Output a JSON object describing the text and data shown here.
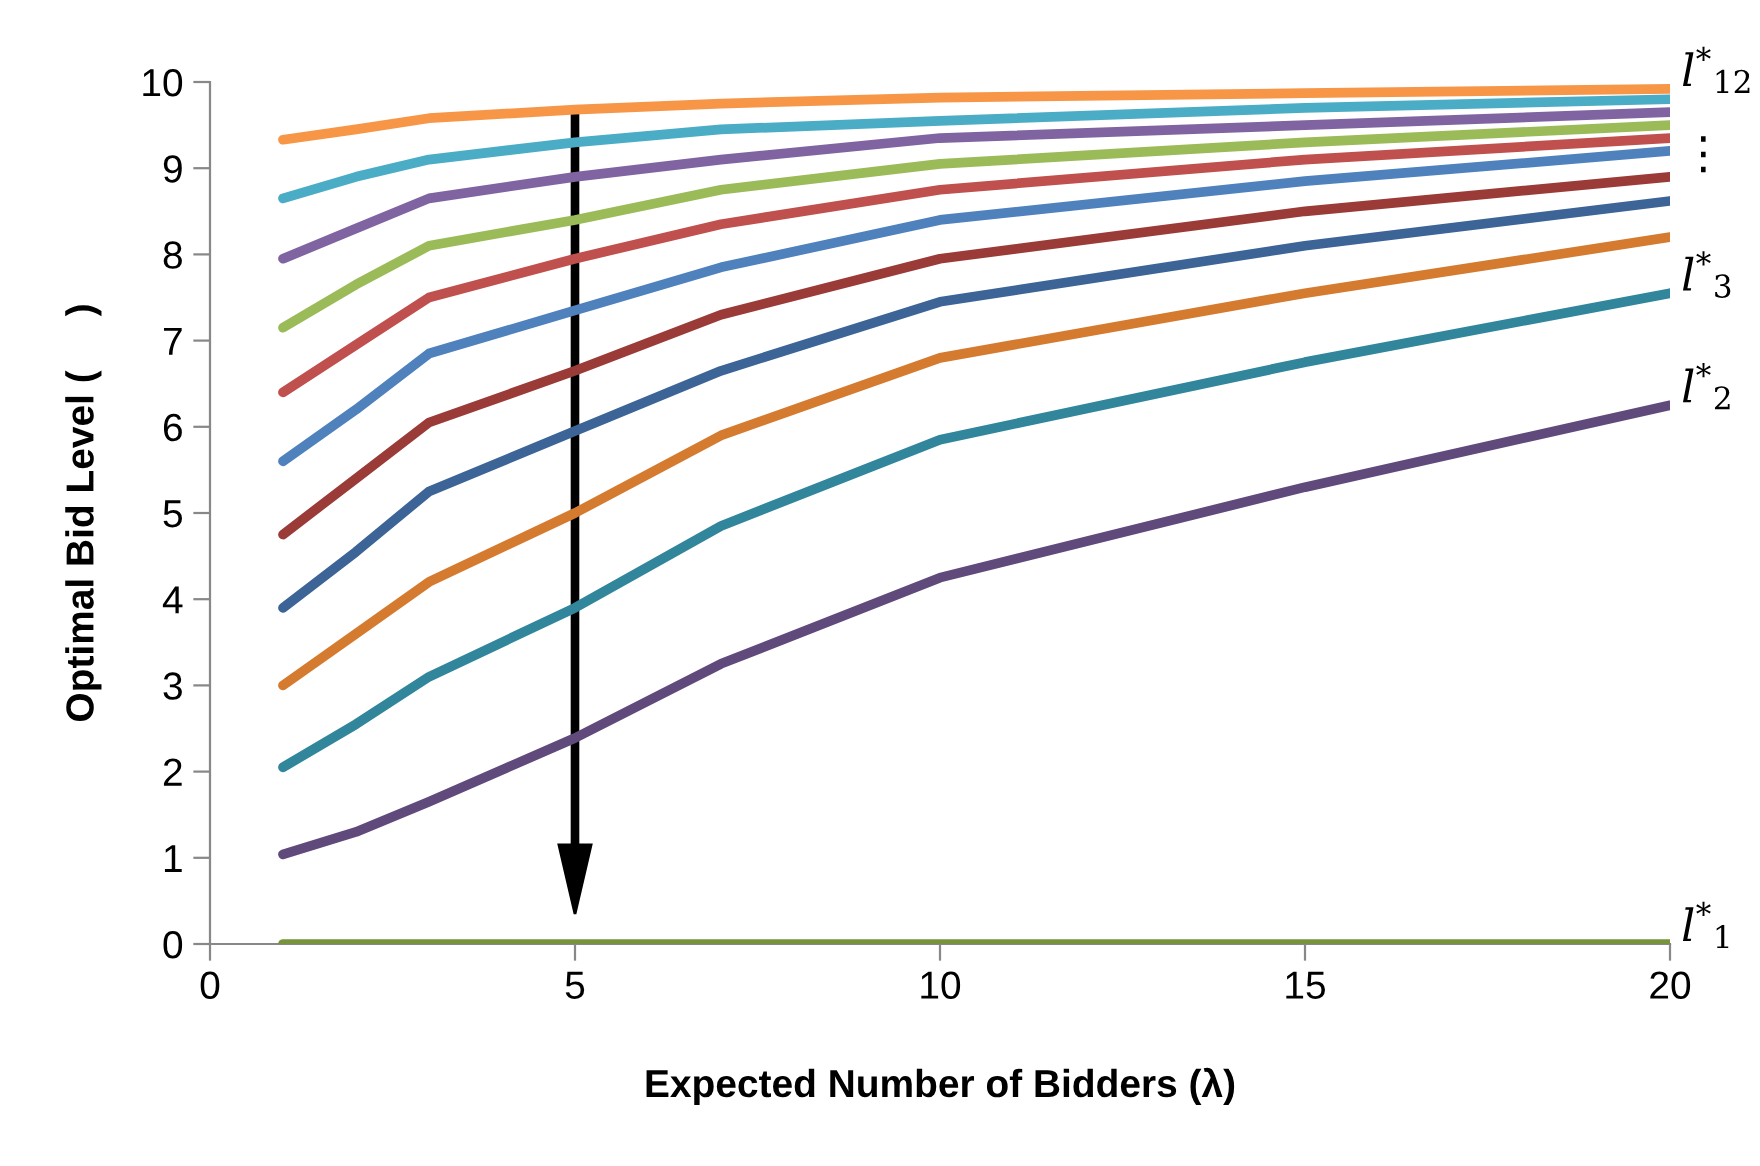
{
  "chart_data": {
    "type": "line",
    "xlabel": "Expected Number of Bidders (λ)",
    "ylabel": "Optimal Bid Level (     )",
    "x": [
      1,
      2,
      3,
      5,
      7,
      10,
      15,
      20
    ],
    "series": [
      {
        "name": "l$^{*}$$_{1}$",
        "color": "#77933c",
        "values": [
          0,
          0,
          0,
          0,
          0,
          0,
          0,
          0
        ]
      },
      {
        "name": "l$^{*}$$_{2}$",
        "color": "#604a7b",
        "values": [
          1.04,
          1.3,
          1.65,
          2.39,
          3.25,
          4.25,
          5.3,
          6.25
        ]
      },
      {
        "name": "l$^{*}$$_{3}$",
        "color": "#31869b",
        "values": [
          2.05,
          2.55,
          3.1,
          3.9,
          4.85,
          5.85,
          6.75,
          7.55
        ]
      },
      {
        "color": "#d47b30",
        "values": [
          3.0,
          3.6,
          4.2,
          5.0,
          5.9,
          6.8,
          7.55,
          8.2
        ]
      },
      {
        "color": "#3c6496",
        "values": [
          3.9,
          4.55,
          5.25,
          5.95,
          6.65,
          7.45,
          8.1,
          8.62
        ]
      },
      {
        "color": "#9a3b38",
        "values": [
          4.75,
          5.4,
          6.05,
          6.65,
          7.3,
          7.95,
          8.5,
          8.9
        ]
      },
      {
        "color": "#4f81bd",
        "values": [
          5.6,
          6.2,
          6.85,
          7.35,
          7.85,
          8.4,
          8.85,
          9.2
        ]
      },
      {
        "color": "#c0504d",
        "values": [
          6.4,
          6.95,
          7.5,
          7.95,
          8.35,
          8.75,
          9.1,
          9.35
        ]
      },
      {
        "color": "#9bbb59",
        "values": [
          7.15,
          7.65,
          8.1,
          8.4,
          8.75,
          9.05,
          9.3,
          9.5
        ]
      },
      {
        "color": "#8064a2",
        "values": [
          7.95,
          8.3,
          8.65,
          8.9,
          9.1,
          9.35,
          9.5,
          9.65
        ]
      },
      {
        "color": "#4bacc6",
        "values": [
          8.65,
          8.9,
          9.1,
          9.3,
          9.45,
          9.55,
          9.7,
          9.8
        ]
      },
      {
        "name": "l$^{*}$$_{12}$",
        "color": "#f79646",
        "values": [
          9.33,
          9.45,
          9.58,
          9.68,
          9.75,
          9.82,
          9.87,
          9.92
        ]
      }
    ],
    "xlim": [
      0,
      20
    ],
    "xticks": [
      0,
      5,
      10,
      15,
      20
    ],
    "ylim": [
      0,
      10
    ],
    "yticks": [
      0,
      1,
      2,
      3,
      4,
      5,
      6,
      7,
      8,
      9,
      10
    ],
    "grid": false,
    "legend": false,
    "marker": "none",
    "line_style": "solid",
    "annotations": [
      {
        "text": "⋮",
        "x": 20,
        "y": 8.95
      }
    ]
  }
}
